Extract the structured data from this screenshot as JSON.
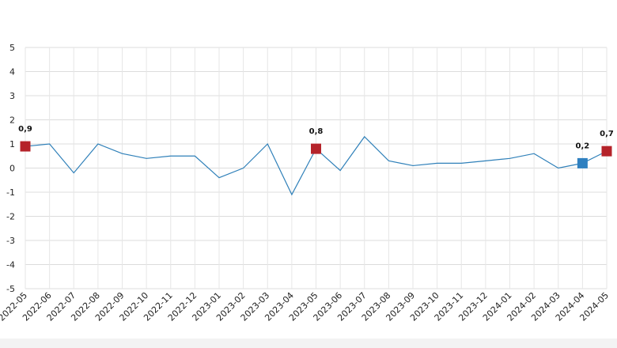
{
  "chart_data": {
    "type": "line",
    "x": [
      "2022-05",
      "2022-06",
      "2022-07",
      "2022-08",
      "2022-09",
      "2022-10",
      "2022-11",
      "2022-12",
      "2023-01",
      "2023-02",
      "2023-03",
      "2023-04",
      "2023-05",
      "2023-06",
      "2023-07",
      "2023-08",
      "2023-09",
      "2023-10",
      "2023-11",
      "2023-12",
      "2024-01",
      "2024-02",
      "2024-03",
      "2024-04",
      "2024-05"
    ],
    "series": [
      {
        "values": [
          0.9,
          1.0,
          -0.2,
          1.0,
          0.6,
          0.4,
          0.5,
          0.5,
          -0.4,
          0.0,
          1.0,
          -1.1,
          0.8,
          -0.1,
          1.3,
          0.3,
          0.1,
          0.2,
          0.2,
          0.3,
          0.4,
          0.6,
          0.0,
          0.2,
          0.7
        ],
        "color": "#2f80b9"
      }
    ],
    "highlights": [
      {
        "index": 0,
        "label": "0,9",
        "color": "#b5232a"
      },
      {
        "index": 12,
        "label": "0,8",
        "color": "#b5232a"
      },
      {
        "index": 23,
        "label": "0,2",
        "color": "#2f80c0"
      },
      {
        "index": 24,
        "label": "0,7",
        "color": "#b5232a"
      }
    ],
    "y_ticks": [
      "5",
      "4",
      "3",
      "2",
      "1",
      "0",
      "-1",
      "-2",
      "-3",
      "-4",
      "-5"
    ],
    "ylim": [
      -5,
      5
    ],
    "title": "",
    "xlabel": "",
    "ylabel": "",
    "grid": true,
    "legend": "none"
  }
}
